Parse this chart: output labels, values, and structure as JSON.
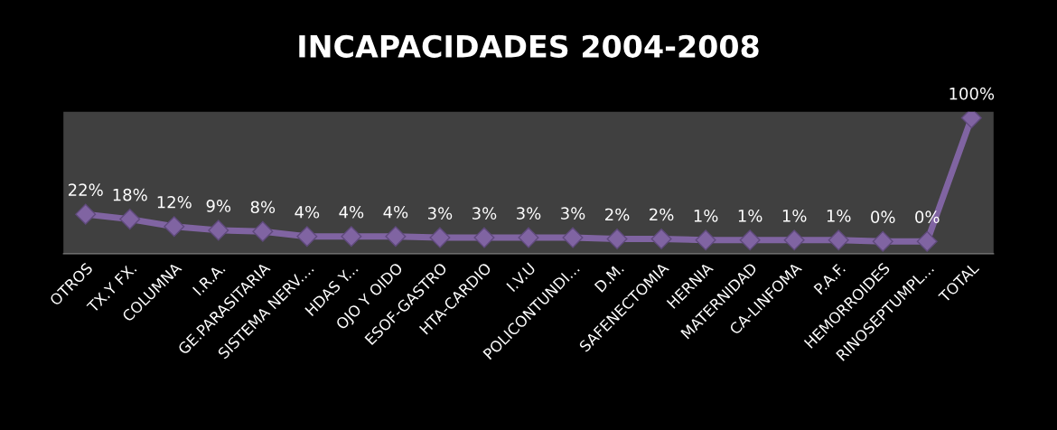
{
  "chart_data": {
    "type": "line",
    "title": "INCAPACIDADES 2004-2008",
    "categories": [
      "OTROS",
      "TX.Y FX.",
      "COLUMNA",
      "I.R.A.",
      "GE.PARASITARIA",
      "SISTEMA NERV....",
      "HDAS Y...",
      "OJO Y OIDO",
      "ESOF-GASTRO",
      "HTA-CARDIO",
      "I.V.U",
      "POLICONTUNDI...",
      "D.M.",
      "SAFENECTOMIA",
      "HERNIA",
      "MATERNIDAD",
      "CA-LINFOMA",
      "P.A.F.",
      "HEMORROIDES",
      "RINOSEPTUMPL...",
      "TOTAL"
    ],
    "series": [
      {
        "color": "#8064a2",
        "values": [
          22,
          18,
          12,
          9,
          8,
          4,
          4,
          4,
          3,
          3,
          3,
          3,
          2,
          2,
          1,
          1,
          1,
          1,
          0,
          0,
          100
        ],
        "value_labels": [
          "22%",
          "18%",
          "12%",
          "9%",
          "8%",
          "4%",
          "4%",
          "4%",
          "3%",
          "3%",
          "3%",
          "3%",
          "2%",
          "2%",
          "1%",
          "1%",
          "1%",
          "1%",
          "0%",
          "0%",
          "100%"
        ]
      }
    ],
    "marker": "diamond",
    "line_style": "solid",
    "grid": false,
    "legend": false
  }
}
